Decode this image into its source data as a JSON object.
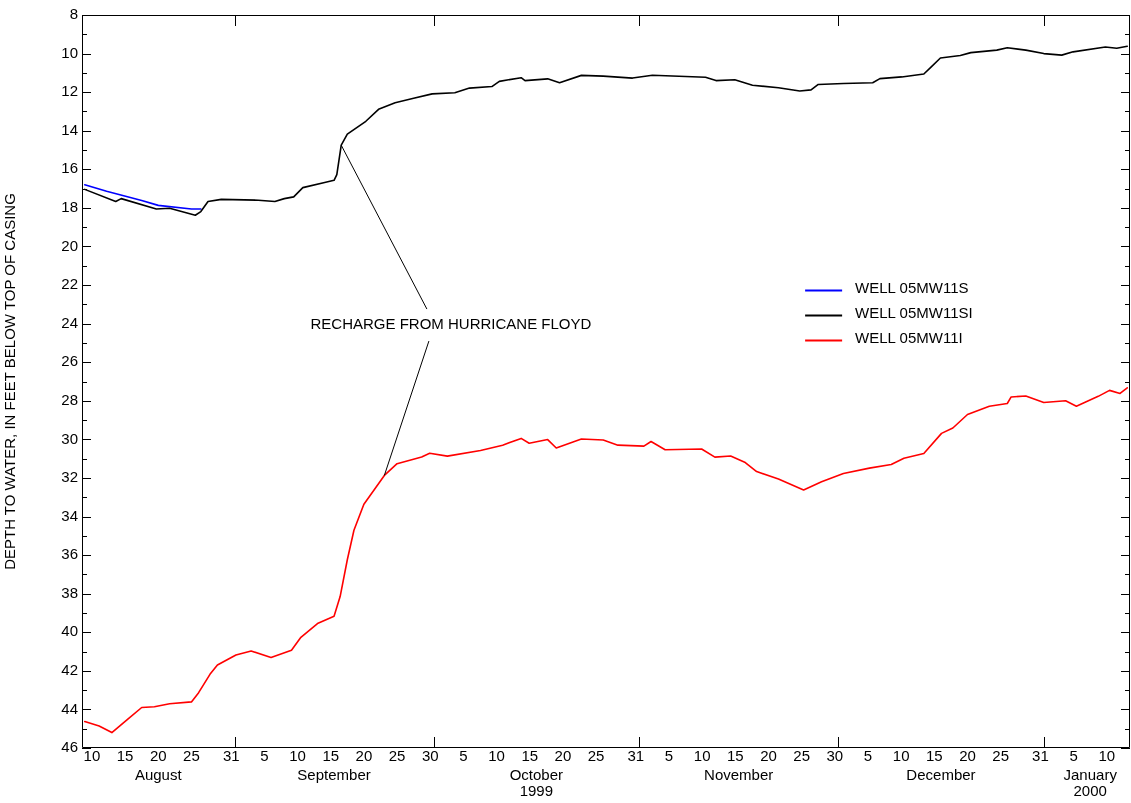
{
  "chart_data": {
    "type": "line",
    "ylabel": "DEPTH TO WATER, IN FEET BELOW TOP OF CASING",
    "xlim": [
      "1999-08-09",
      "2000-01-14"
    ],
    "xticks": [
      {
        "value": "1999-08-10T12:00",
        "label": "10"
      },
      {
        "value": "1999-08-15T12:00",
        "label": "15"
      },
      {
        "value": "1999-08-20T12:00",
        "label": "20"
      },
      {
        "value": "1999-08-25T12:00",
        "label": "25"
      },
      {
        "value": "1999-08-31T12:00",
        "label": "31"
      },
      {
        "value": "1999-09-01",
        "label": null
      },
      {
        "value": "1999-09-05T12:00",
        "label": "5"
      },
      {
        "value": "1999-09-10T12:00",
        "label": "10"
      },
      {
        "value": "1999-09-15T12:00",
        "label": "15"
      },
      {
        "value": "1999-09-20T12:00",
        "label": "20"
      },
      {
        "value": "1999-09-25T12:00",
        "label": "25"
      },
      {
        "value": "1999-09-30T12:00",
        "label": "30"
      },
      {
        "value": "1999-10-01",
        "label": null
      },
      {
        "value": "1999-10-05T12:00",
        "label": "5"
      },
      {
        "value": "1999-10-10T12:00",
        "label": "10"
      },
      {
        "value": "1999-10-15T12:00",
        "label": "15"
      },
      {
        "value": "1999-10-20T12:00",
        "label": "20"
      },
      {
        "value": "1999-10-25T12:00",
        "label": "25"
      },
      {
        "value": "1999-10-31T12:00",
        "label": "31"
      },
      {
        "value": "1999-11-01",
        "label": null
      },
      {
        "value": "1999-11-05T12:00",
        "label": "5"
      },
      {
        "value": "1999-11-10T12:00",
        "label": "10"
      },
      {
        "value": "1999-11-15T12:00",
        "label": "15"
      },
      {
        "value": "1999-11-20T12:00",
        "label": "20"
      },
      {
        "value": "1999-11-25T12:00",
        "label": "25"
      },
      {
        "value": "1999-11-30T12:00",
        "label": "30"
      },
      {
        "value": "1999-12-01",
        "label": null
      },
      {
        "value": "1999-12-05T12:00",
        "label": "5"
      },
      {
        "value": "1999-12-10T12:00",
        "label": "10"
      },
      {
        "value": "1999-12-15T12:00",
        "label": "15"
      },
      {
        "value": "1999-12-20T12:00",
        "label": "20"
      },
      {
        "value": "1999-12-25T12:00",
        "label": "25"
      },
      {
        "value": "1999-12-31T12:00",
        "label": "31"
      },
      {
        "value": "2000-01-01",
        "label": null
      },
      {
        "value": "2000-01-05T12:00",
        "label": "5"
      },
      {
        "value": "2000-01-10T12:00",
        "label": "10"
      }
    ],
    "x2lim": [
      "1999-08-09",
      "2000-01-14"
    ],
    "x2ticks": [
      {
        "value": "1999-08-20T12:00",
        "label": "August"
      },
      {
        "value": "1999-09-16",
        "label": "September"
      },
      {
        "value": "1999-10-16T12:00",
        "label": "October\n1999"
      },
      {
        "value": "1999-11-16",
        "label": "November"
      },
      {
        "value": "1999-12-16T12:00",
        "label": "December"
      },
      {
        "value": "2000-01-08",
        "label": "January\n2000"
      }
    ],
    "ylim": [
      46,
      8
    ],
    "yticks": [
      8,
      {
        "value": 9,
        "label": null
      },
      10,
      {
        "value": 11,
        "label": null
      },
      12,
      {
        "value": 13,
        "label": null
      },
      14,
      {
        "value": 15,
        "label": null
      },
      16,
      {
        "value": 17,
        "label": null
      },
      18,
      {
        "value": 19,
        "label": null
      },
      20,
      {
        "value": 21,
        "label": null
      },
      22,
      {
        "value": 23,
        "label": null
      },
      24,
      {
        "value": 25,
        "label": null
      },
      26,
      {
        "value": 27,
        "label": null
      },
      28,
      {
        "value": 29,
        "label": null
      },
      30,
      {
        "value": 31,
        "label": null
      },
      32,
      {
        "value": 33,
        "label": null
      },
      34,
      {
        "value": 35,
        "label": null
      },
      36,
      {
        "value": 37,
        "label": null
      },
      38,
      {
        "value": 39,
        "label": null
      },
      40,
      {
        "value": 41,
        "label": null
      },
      42,
      {
        "value": 43,
        "label": null
      },
      44,
      {
        "value": 45,
        "label": null
      },
      46
    ],
    "grid": false,
    "legend": "right",
    "marker": "none",
    "line_style": "solid",
    "annotations": [
      {
        "text": "RECHARGE FROM HURRICANE FLOYD",
        "x": "1999-09-17T02:00",
        "y": 14.75
      }
    ],
    "series": [
      {
        "name": "WELL 05MW11S",
        "color": "#0000ff",
        "x": [
          "1999-08-09T10:00",
          "1999-08-12T17:00",
          "1999-08-18T00:00",
          "1999-08-20T12:00",
          "1999-08-25T12:00",
          "1999-08-26T22:00"
        ],
        "values": [
          16.8,
          17.14,
          17.62,
          17.87,
          18.06,
          18.06
        ]
      },
      {
        "name": "WELL 05MW11SI",
        "color": "#000000",
        "x": [
          "1999-08-09T10:00",
          "1999-08-14T02:00",
          "1999-08-14T22:00",
          "1999-08-20T05:00",
          "1999-08-22T05:00",
          "1999-08-26T02:00",
          "1999-08-26T22:00",
          "1999-08-28T00:00",
          "1999-08-30T00:00",
          "1999-09-04T14:00",
          "1999-09-07T02:00",
          "1999-09-08T12:00",
          "1999-09-09T22:00",
          "1999-09-11T07:00",
          "1999-09-14T14:00",
          "1999-09-16T00:00",
          "1999-09-16T10:00",
          "1999-09-17T02:00",
          "1999-09-18T00:00",
          "1999-09-20T19:00",
          "1999-09-22T17:00",
          "1999-09-25T05:00",
          "1999-09-28T00:00",
          "1999-09-30T19:00",
          "1999-10-04T05:00",
          "1999-10-06T10:00",
          "1999-10-09T19:00",
          "1999-10-10T22:00",
          "1999-10-14T05:00",
          "1999-10-14T19:00",
          "1999-10-18T05:00",
          "1999-10-20T00:00",
          "1999-10-23T07:00",
          "1999-10-26T14:00",
          "1999-10-31T00:00",
          "1999-11-03T00:00",
          "1999-11-11T00:00",
          "1999-11-12T14:00",
          "1999-11-15T10:00",
          "1999-11-18T02:00",
          "1999-11-22T00:00",
          "1999-11-25T05:00",
          "1999-11-26T22:00",
          "1999-11-28T00:00",
          "1999-12-01T19:00",
          "1999-12-06T05:00",
          "1999-12-07T07:00",
          "1999-12-10T14:00",
          "1999-12-13T22:00",
          "1999-12-15T00:00",
          "1999-12-16T10:00",
          "1999-12-19T10:00",
          "1999-12-21T00:00",
          "1999-12-24T22:00",
          "1999-12-26T12:00",
          "1999-12-29T07:00",
          "2000-01-01T00:00",
          "2000-01-03T17:00",
          "2000-01-05T10:00",
          "2000-01-10T07:00",
          "2000-01-12T00:00",
          "2000-01-13T14:00"
        ],
        "values": [
          17.04,
          17.67,
          17.52,
          18.06,
          18.02,
          18.38,
          18.19,
          17.67,
          17.56,
          17.6,
          17.67,
          17.52,
          17.43,
          16.95,
          16.68,
          16.57,
          16.28,
          14.75,
          14.18,
          13.51,
          12.89,
          12.55,
          12.32,
          12.09,
          12.03,
          11.79,
          11.71,
          11.44,
          11.25,
          11.4,
          11.31,
          11.51,
          11.13,
          11.17,
          11.27,
          11.12,
          11.23,
          11.4,
          11.36,
          11.64,
          11.77,
          11.94,
          11.88,
          11.6,
          11.55,
          11.51,
          11.3,
          11.21,
          11.06,
          10.7,
          10.23,
          10.1,
          9.95,
          9.82,
          9.7,
          9.82,
          10.0,
          10.08,
          9.91,
          9.66,
          9.72,
          9.62
        ]
      },
      {
        "name": "WELL 05MW11I",
        "color": "#ff0000",
        "x": [
          "1999-08-09T10:00",
          "1999-08-11T14:00",
          "1999-08-13T12:00",
          "1999-08-16T00:00",
          "1999-08-18T00:00",
          "1999-08-19T22:00",
          "1999-08-22T05:00",
          "1999-08-25T12:00",
          "1999-08-26T14:00",
          "1999-08-28T07:00",
          "1999-08-29T10:00",
          "1999-09-01T05:00",
          "1999-09-03T12:00",
          "1999-09-06T12:00",
          "1999-09-09T14:00",
          "1999-09-11T00:00",
          "1999-09-13T12:00",
          "1999-09-16T00:00",
          "1999-09-16T22:00",
          "1999-09-18T00:00",
          "1999-09-19T00:00",
          "1999-09-20T12:00",
          "1999-09-23T14:00",
          "1999-09-25T12:00",
          "1999-09-29T05:00",
          "1999-09-30T10:00",
          "1999-10-03T02:00",
          "1999-10-08T02:00",
          "1999-10-11T10:00",
          "1999-10-14T05:00",
          "1999-10-15T10:00",
          "1999-10-18T05:00",
          "1999-10-19T12:00",
          "1999-10-23T07:00",
          "1999-10-26T14:00",
          "1999-10-28T19:00",
          "1999-11-01T17:00",
          "1999-11-02T19:00",
          "1999-11-04T22:00",
          "1999-11-10T10:00",
          "1999-11-12T10:00",
          "1999-11-14T19:00",
          "1999-11-17T00:00",
          "1999-11-18T17:00",
          "1999-11-22T00:00",
          "1999-11-25T19:00",
          "1999-11-28T12:00",
          "1999-12-01T19:00",
          "1999-12-05T17:00",
          "1999-12-09T00:00",
          "1999-12-10T22:00",
          "1999-12-13T22:00",
          "1999-12-16T14:00",
          "1999-12-18T07:00",
          "1999-12-20T12:00",
          "1999-12-23T19:00",
          "1999-12-26T12:00",
          "1999-12-27T02:00",
          "1999-12-29T07:00",
          "2000-01-01T00:00",
          "2000-01-04T07:00",
          "2000-01-05T22:00",
          "2000-01-09T05:00",
          "2000-01-10T22:00",
          "2000-01-12T12:00",
          "2000-01-13T14:00"
        ],
        "values": [
          44.63,
          44.86,
          45.2,
          44.48,
          43.9,
          43.86,
          43.71,
          43.61,
          43.13,
          42.18,
          41.7,
          41.18,
          40.97,
          41.31,
          40.93,
          40.26,
          39.55,
          39.17,
          38.15,
          36.24,
          34.71,
          33.36,
          31.87,
          31.26,
          30.91,
          30.72,
          30.87,
          30.58,
          30.3,
          29.95,
          30.2,
          30.01,
          30.45,
          29.98,
          30.03,
          30.3,
          30.35,
          30.11,
          30.54,
          30.5,
          30.92,
          30.86,
          31.2,
          31.67,
          32.05,
          32.62,
          32.2,
          31.77,
          31.49,
          31.3,
          30.98,
          30.73,
          29.69,
          29.41,
          28.71,
          28.28,
          28.14,
          27.8,
          27.75,
          28.09,
          28.0,
          28.28,
          27.77,
          27.46,
          27.62,
          27.33
        ]
      }
    ]
  }
}
